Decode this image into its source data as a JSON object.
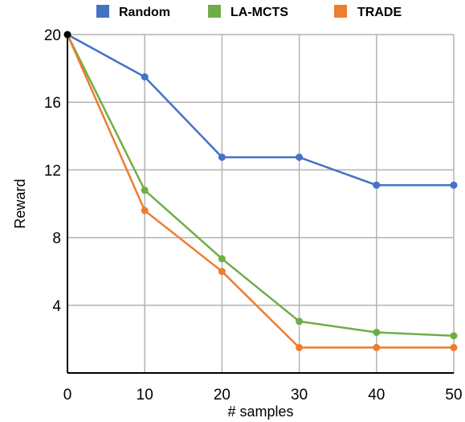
{
  "chart_data": {
    "type": "line",
    "xlabel": "# samples",
    "ylabel": "Reward",
    "x": [
      0,
      10,
      20,
      30,
      40,
      50
    ],
    "xlim": [
      0,
      50
    ],
    "ylim": [
      0,
      20
    ],
    "xticks": [
      "0",
      "10",
      "20",
      "30",
      "40",
      "50"
    ],
    "yticks": [
      "4",
      "8",
      "12",
      "16",
      "20"
    ],
    "ytick_values": [
      4,
      8,
      12,
      16,
      20
    ],
    "grid": true,
    "legend_position": "top",
    "series": [
      {
        "name": "Random",
        "color": "#4472C4",
        "values": [
          20,
          17.5,
          12.75,
          12.75,
          11.1,
          11.1
        ]
      },
      {
        "name": "LA-MCTS",
        "color": "#70AD47",
        "values": [
          20,
          10.8,
          6.75,
          3.05,
          2.4,
          2.2
        ]
      },
      {
        "name": "TRADE",
        "color": "#ED7D31",
        "values": [
          20,
          9.6,
          6.0,
          1.5,
          1.5,
          1.5
        ]
      }
    ]
  }
}
